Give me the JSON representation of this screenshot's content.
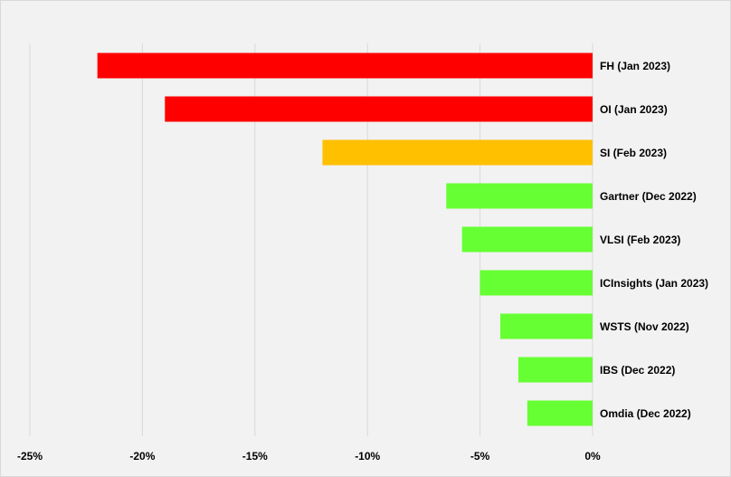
{
  "chart_data": {
    "type": "bar",
    "orientation": "horizontal",
    "categories": [
      "FH (Jan 2023)",
      "OI (Jan 2023)",
      "SI (Feb 2023)",
      "Gartner (Dec 2022)",
      "VLSI (Feb 2023)",
      "ICInsights (Jan 2023)",
      "WSTS (Nov 2022)",
      "IBS (Dec 2022)",
      "Omdia (Dec 2022)"
    ],
    "values": [
      -22,
      -19,
      -12,
      -6.5,
      -5.8,
      -5,
      -4.1,
      -3.3,
      -2.9
    ],
    "bar_colors": [
      "#ff0000",
      "#ff0000",
      "#ffc000",
      "#66ff33",
      "#66ff33",
      "#66ff33",
      "#66ff33",
      "#66ff33",
      "#66ff33"
    ],
    "xlim": [
      -25,
      0
    ],
    "xticks": [
      -25,
      -20,
      -15,
      -10,
      -5,
      0
    ],
    "xtick_labels": [
      "-25%",
      "-20%",
      "-15%",
      "-10%",
      "-5%",
      "0%"
    ],
    "grid": "vertical",
    "title": "",
    "xlabel": "",
    "ylabel": ""
  },
  "colors": {
    "background": "#f2f2f2",
    "gridline": "#d9d9d9"
  }
}
